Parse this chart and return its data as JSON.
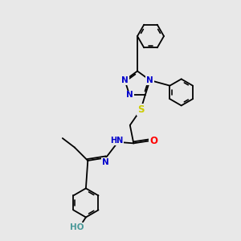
{
  "bg_color": "#e8e8e8",
  "bond_color": "#000000",
  "atom_colors": {
    "N": "#0000cc",
    "S": "#cccc00",
    "O": "#ff0000",
    "H_teal": "#4a9999",
    "C": "#000000"
  },
  "font_size": 7.5,
  "line_width": 1.3,
  "figsize": [
    3.0,
    3.0
  ],
  "dpi": 100
}
